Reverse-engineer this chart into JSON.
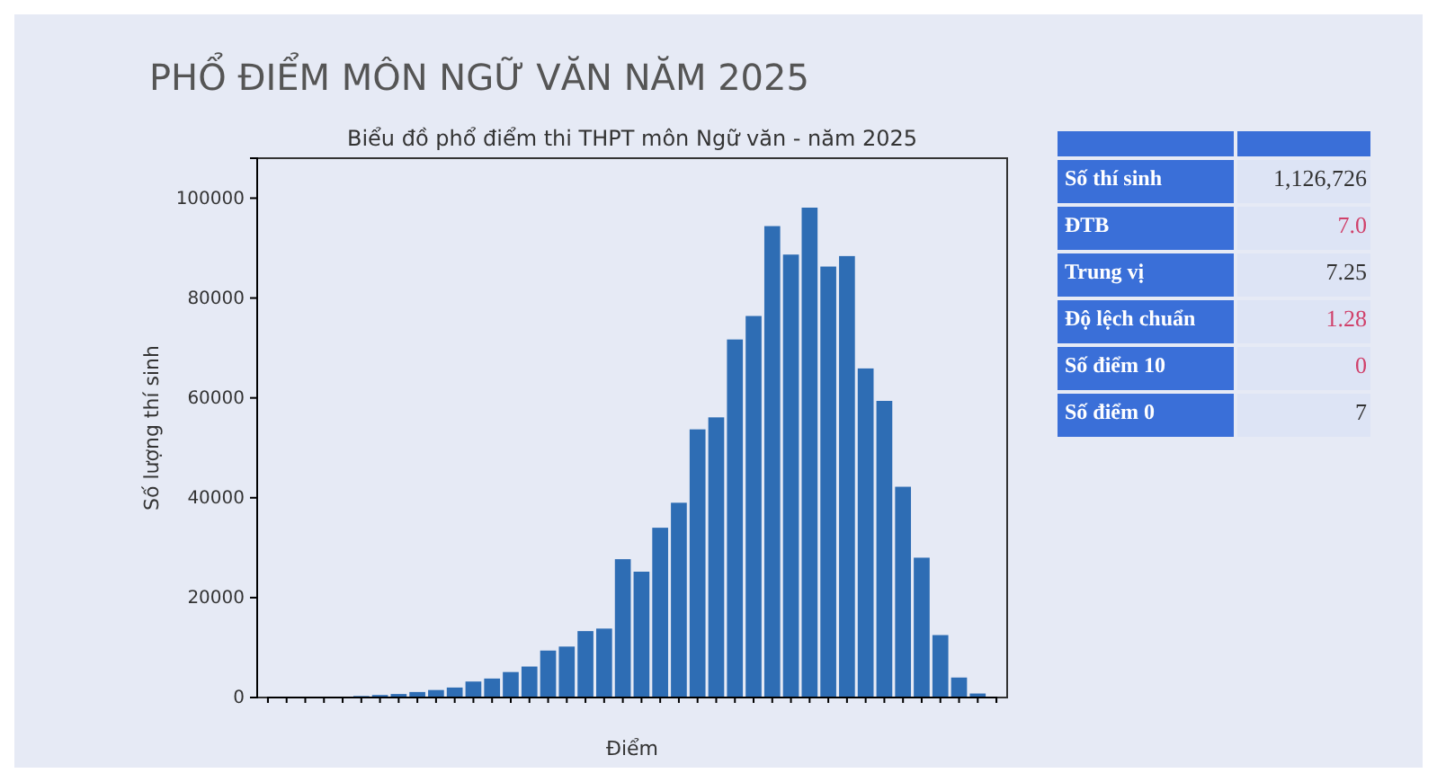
{
  "chart_data": [
    {
      "type": "bar",
      "title": "PHỔ ĐIỂM MÔN NGỮ VĂN NĂM 2025",
      "subtitle": "Biểu đồ phổ điểm thi THPT môn Ngữ văn - năm 2025",
      "xlabel": "Điểm",
      "ylabel": "Số lượng thí sinh",
      "categories": [
        null,
        null,
        null,
        null,
        null,
        null,
        null,
        null,
        null,
        null,
        null,
        null,
        null,
        null,
        null,
        null,
        null,
        null,
        null,
        null,
        null,
        null,
        null,
        null,
        null,
        null,
        null,
        null,
        null,
        null,
        null,
        null,
        null,
        null,
        null,
        null,
        null,
        null,
        null,
        null
      ],
      "values": [
        null,
        null,
        null,
        null,
        null,
        300,
        500,
        700,
        1100,
        1500,
        2000,
        3200,
        3800,
        5100,
        6200,
        9400,
        10200,
        13300,
        13800,
        27700,
        25200,
        34000,
        39000,
        53700,
        56100,
        71700,
        76400,
        94400,
        88700,
        98100,
        86300,
        88400,
        65900,
        59400,
        42200,
        28000,
        12500,
        4000,
        800,
        null
      ],
      "color": "#2e6db4",
      "ylim": [
        0,
        108000
      ],
      "yticks": [
        0,
        20000,
        40000,
        60000,
        80000,
        100000
      ],
      "grid": false
    },
    {
      "type": "other",
      "annotations": [
        "Số thí sinh",
        "1,126,726",
        "ĐTB",
        "7.0",
        "Trung vị",
        "7.25",
        "Độ lệch chuẩn",
        "1.28",
        "Số điểm 10",
        "0",
        "Số điểm 0",
        "7"
      ]
    }
  ]
}
